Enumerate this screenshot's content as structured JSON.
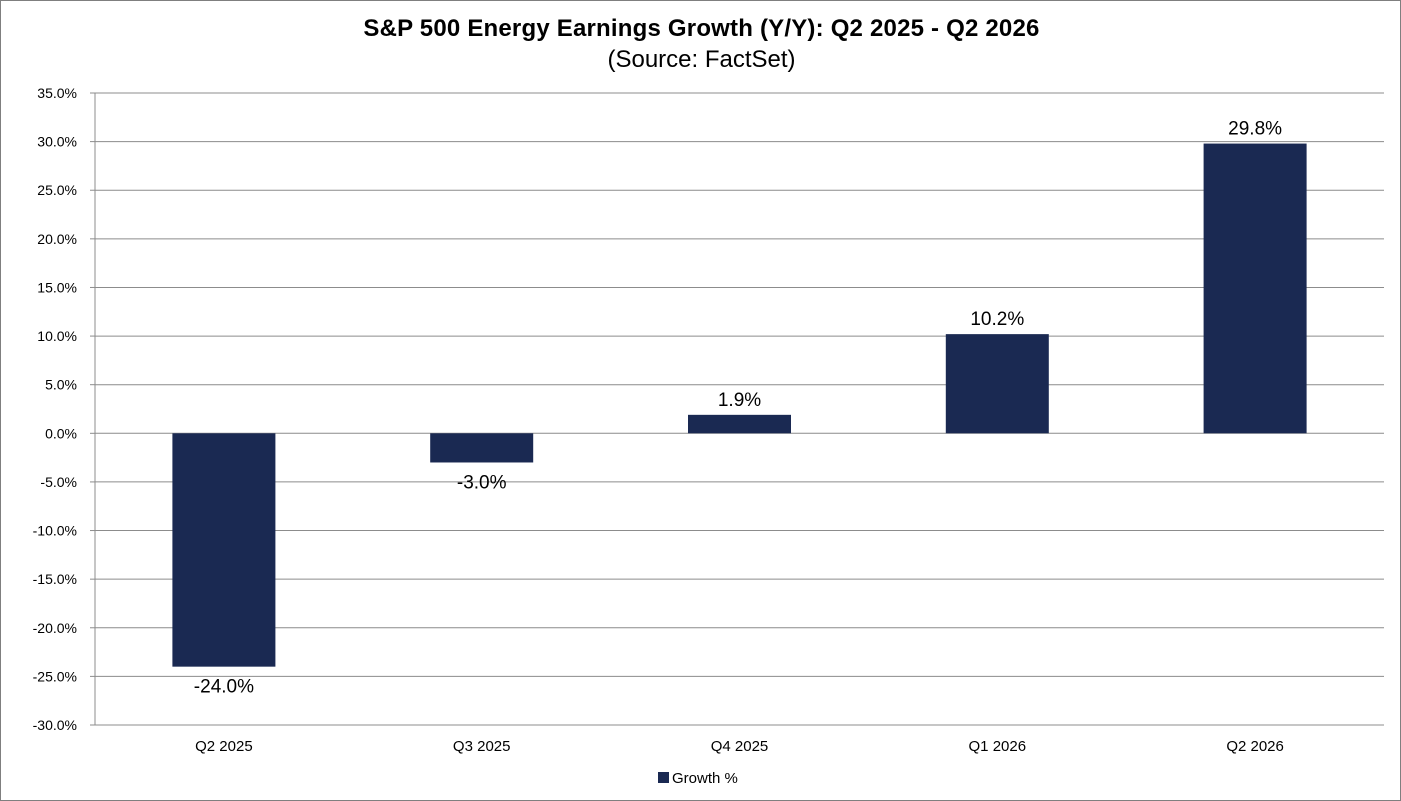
{
  "chart_data": {
    "type": "bar",
    "title": "S&P 500 Energy Earnings Growth (Y/Y): Q2 2025 - Q2 2026",
    "subtitle": "(Source: FactSet)",
    "categories": [
      "Q2 2025",
      "Q3 2025",
      "Q4 2025",
      "Q1 2026",
      "Q2 2026"
    ],
    "series": [
      {
        "name": "Growth %",
        "values": [
          -24.0,
          -3.0,
          1.9,
          10.2,
          29.8
        ],
        "data_labels": [
          "-24.0%",
          "-3.0%",
          "1.9%",
          "10.2%",
          "29.8%"
        ],
        "color": "#1a2952"
      }
    ],
    "ylim": [
      -30,
      35
    ],
    "y_ticks": [
      35,
      30,
      25,
      20,
      15,
      10,
      5,
      0,
      -5,
      -10,
      -15,
      -20,
      -25,
      -30
    ],
    "y_tick_labels": [
      "35.0%",
      "30.0%",
      "25.0%",
      "20.0%",
      "15.0%",
      "10.0%",
      "5.0%",
      "0.0%",
      "-5.0%",
      "-10.0%",
      "-15.0%",
      "-20.0%",
      "-25.0%",
      "-30.0%"
    ],
    "xlabel": "",
    "ylabel": "",
    "grid": true,
    "legend": {
      "position": "bottom",
      "label": "Growth %"
    }
  }
}
